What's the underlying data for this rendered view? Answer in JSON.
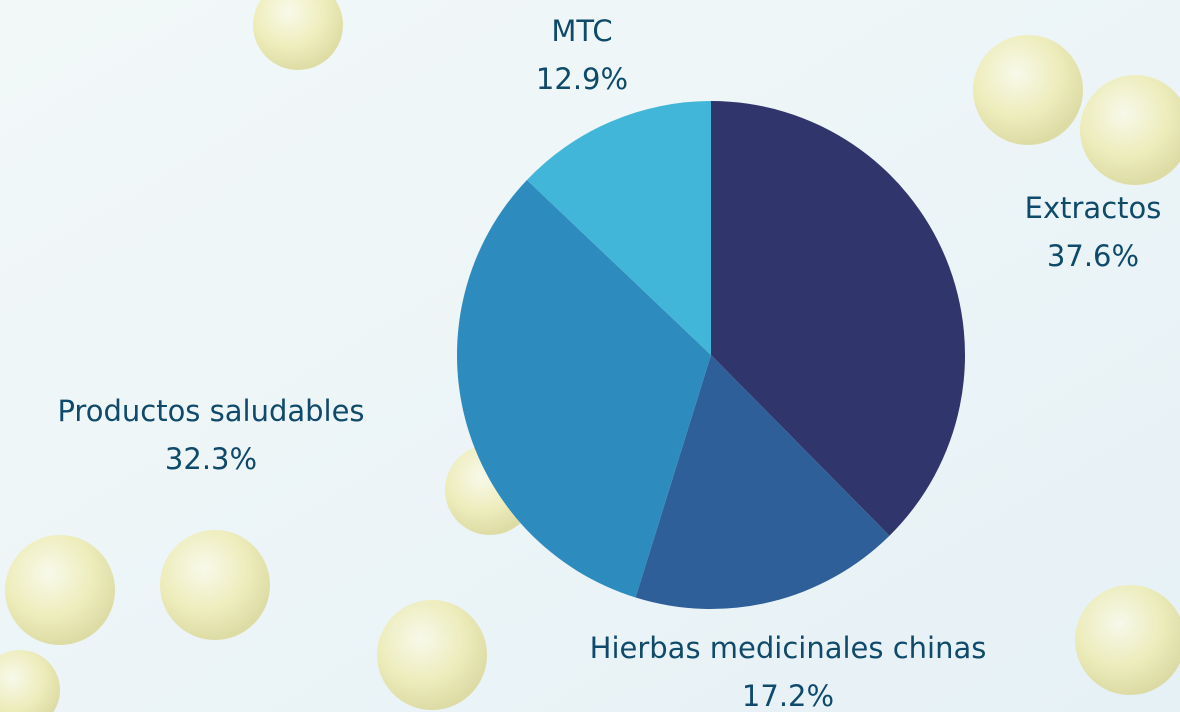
{
  "chart_data": {
    "type": "pie",
    "categories": [
      "Extractos",
      "Hierbas medicinales chinas",
      "Productos saludables",
      "MTC"
    ],
    "values": [
      37.6,
      17.2,
      32.3,
      12.9
    ],
    "value_labels": [
      "37.6%",
      "17.2%",
      "32.3%",
      "12.9%"
    ],
    "colors": [
      "#30356b",
      "#2e5f99",
      "#2e8bbd",
      "#42b6d8"
    ]
  }
}
